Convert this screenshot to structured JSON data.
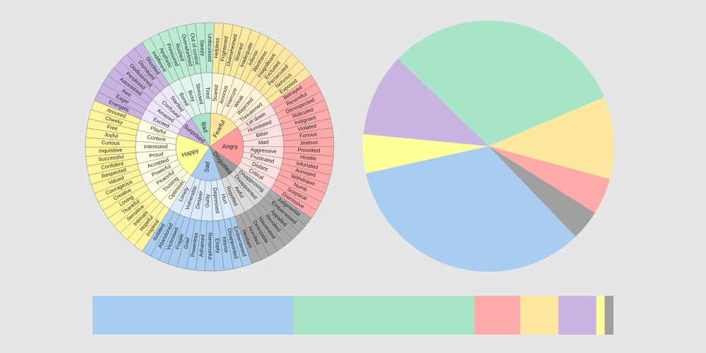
{
  "wheel": {
    "groups": [
      {
        "name": "Bad",
        "colors": [
          "#a8e4c8",
          "#e0f5eb",
          "#b9ecd2"
        ],
        "items": [
          {
            "name": "Bored",
            "items": [
              "Indifferent",
              "Apathetic"
            ]
          },
          {
            "name": "Busy",
            "items": [
              "Pressured",
              "Rushed"
            ]
          },
          {
            "name": "Stressed",
            "items": [
              "Overwhelmed",
              "Out of control"
            ]
          },
          {
            "name": "Tired",
            "items": [
              "Sleepy",
              "Unfocussed"
            ]
          }
        ]
      },
      {
        "name": "Fearful",
        "colors": [
          "#ffe69a",
          "#fff5d6",
          "#fde8a0"
        ],
        "items": [
          {
            "name": "Scared",
            "items": [
              "Helpless",
              "Frightened"
            ]
          },
          {
            "name": "Anxious",
            "items": [
              "Overwhelmed",
              "Worried"
            ]
          },
          {
            "name": "Insecure",
            "items": [
              "Inadequate",
              "Inferior"
            ]
          },
          {
            "name": "Weak",
            "items": [
              "Worthless",
              "Insignificant"
            ]
          },
          {
            "name": "Rejected",
            "items": [
              "Excluded",
              "Persecuted"
            ]
          },
          {
            "name": "Threatened",
            "items": [
              "Nervous",
              "Exposed"
            ]
          }
        ]
      },
      {
        "name": "Angry",
        "colors": [
          "#ff9d9d",
          "#ffe0e0",
          "#ffaaa8"
        ],
        "items": [
          {
            "name": "Let down",
            "items": [
              "Betrayed",
              "Resentful"
            ]
          },
          {
            "name": "Humiliated",
            "items": [
              "Disrespected",
              "Ridiculed"
            ]
          },
          {
            "name": "Bitter",
            "items": [
              "Indignant",
              "Violated"
            ]
          },
          {
            "name": "Mad",
            "items": [
              "Furious",
              "Jealous"
            ]
          },
          {
            "name": "Aggressive",
            "items": [
              "Provoked",
              "Hostile"
            ]
          },
          {
            "name": "Frustrated",
            "items": [
              "Infuriated",
              "Annoyed"
            ]
          },
          {
            "name": "Distant",
            "items": [
              "Withdrawn",
              "Numb"
            ]
          },
          {
            "name": "Critical",
            "items": [
              "Sceptical",
              "Dismissive"
            ]
          }
        ]
      },
      {
        "name": "Disgusted",
        "colors": [
          "#9a9a9a",
          "#dadada",
          "#a8a8a8"
        ],
        "items": [
          {
            "name": "Disapproving",
            "items": [
              "Judgmental",
              "Embarrassed"
            ]
          },
          {
            "name": "Disappointed",
            "items": [
              "Appalled",
              "Revolted"
            ]
          },
          {
            "name": "Awful",
            "items": [
              "Nauseated",
              "Detestable"
            ]
          },
          {
            "name": "Repelled",
            "items": [
              "Horrified",
              "Hesitant"
            ]
          }
        ]
      },
      {
        "name": "Sad",
        "colors": [
          "#a8cdf0",
          "#dcebfa",
          "#a8cdf0"
        ],
        "items": [
          {
            "name": "Hurt",
            "items": [
              "Embarrassed",
              "Disappointed"
            ]
          },
          {
            "name": "Depressed",
            "items": [
              "Inferior",
              "Empty"
            ]
          },
          {
            "name": "Guilty",
            "items": [
              "Remorseful",
              "Ashamed"
            ]
          },
          {
            "name": "Despair",
            "items": [
              "Powerless",
              "Grief"
            ]
          },
          {
            "name": "Vulnerable",
            "items": [
              "Fragile",
              "Victimised"
            ]
          },
          {
            "name": "Lonely",
            "items": [
              "Abandoned",
              "Isolated"
            ]
          }
        ]
      },
      {
        "name": "Happy",
        "colors": [
          "#ffff99",
          "#fffde2",
          "#fff59d"
        ],
        "items": [
          {
            "name": "Optimistic",
            "items": [
              "Inspired",
              "Hopeful"
            ]
          },
          {
            "name": "Trusting",
            "items": [
              "Intimate",
              "Sensitive"
            ]
          },
          {
            "name": "Peaceful",
            "items": [
              "Thankful",
              "Loving"
            ]
          },
          {
            "name": "Powerful",
            "items": [
              "Creative",
              "Courageous"
            ]
          },
          {
            "name": "Accepted",
            "items": [
              "Valued",
              "Respected"
            ]
          },
          {
            "name": "Proud",
            "items": [
              "Confident",
              "Successful"
            ]
          },
          {
            "name": "Interested",
            "items": [
              "Inquisitive",
              "Curious"
            ]
          },
          {
            "name": "Content",
            "items": [
              "Joyful",
              "Free"
            ]
          },
          {
            "name": "Playful",
            "items": [
              "Cheeky",
              "Aroused"
            ]
          }
        ]
      },
      {
        "name": "Surprised",
        "colors": [
          "#c9b3e0",
          "#efe6f8",
          "#c9b3e0"
        ],
        "items": [
          {
            "name": "Excited",
            "items": [
              "Energetic",
              "Eager"
            ]
          },
          {
            "name": "Amazed",
            "items": [
              "Awe",
              "Astonished"
            ]
          },
          {
            "name": "Confused",
            "items": [
              "Perplexed",
              "Disillusioned"
            ]
          },
          {
            "name": "Startled",
            "items": [
              "Dismayed",
              "Shocked"
            ]
          }
        ]
      }
    ]
  },
  "chart_data": [
    {
      "type": "pie",
      "values": [
        31.4,
        10.6,
        4.7,
        3.9,
        33.7,
        5.0,
        10.7
      ],
      "colors": [
        "#a8e4c8",
        "#fde8a0",
        "#ffaaa8",
        "#a0a0a0",
        "#a8cdf0",
        "#ffff99",
        "#c9b3e0"
      ]
    },
    {
      "type": "stacked-bar",
      "values": [
        38.6,
        34.7,
        8.8,
        7.3,
        7.3,
        1.6,
        1.7
      ],
      "xlim": [
        0,
        100
      ],
      "colors": [
        "#a8cdf0",
        "#a8e4c8",
        "#ffaaa8",
        "#fde8a0",
        "#c9b3e0",
        "#ffff99",
        "#a0a0a0"
      ]
    }
  ]
}
